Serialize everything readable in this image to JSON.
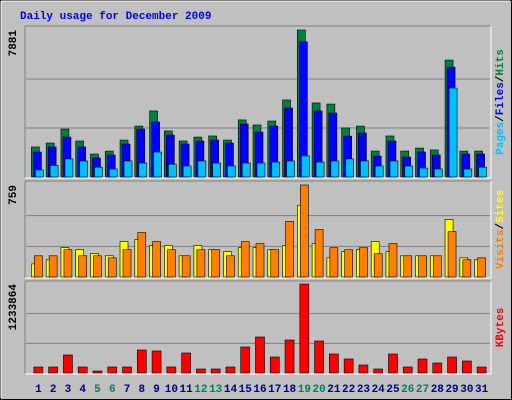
{
  "chart_data": [
    {
      "type": "bar",
      "title": "Daily usage for December 2009",
      "title_color": "#0000ff",
      "ylim": [
        0,
        7881
      ],
      "grid": true,
      "legend_separator": "/",
      "series": [
        {
          "name": "Hits",
          "color": "#008040",
          "values": [
            1610,
            1820,
            2570,
            1930,
            1230,
            1390,
            1980,
            2730,
            3540,
            2470,
            1930,
            2140,
            2200,
            1980,
            3060,
            2790,
            3000,
            4130,
            7881,
            3970,
            3910,
            2630,
            2730,
            1390,
            2200,
            1390,
            1550,
            1450,
            6270,
            1390,
            1390
          ]
        },
        {
          "name": "Files",
          "color": "#0000ff",
          "values": [
            1340,
            1610,
            2140,
            1610,
            1020,
            1180,
            1770,
            2570,
            2950,
            2250,
            1770,
            1930,
            1980,
            1820,
            2840,
            2410,
            2730,
            3700,
            7250,
            3540,
            3430,
            2190,
            2360,
            1120,
            1930,
            1070,
            1340,
            1180,
            5890,
            1230,
            1230
          ]
        },
        {
          "name": "Pages",
          "color": "#00c0ff",
          "values": [
            380,
            620,
            970,
            860,
            530,
            430,
            860,
            750,
            1340,
            690,
            590,
            860,
            750,
            590,
            750,
            750,
            800,
            860,
            1130,
            800,
            860,
            970,
            860,
            590,
            860,
            590,
            480,
            430,
            4770,
            430,
            530
          ]
        }
      ]
    },
    {
      "type": "bar",
      "ylim": [
        0,
        759
      ],
      "grid": true,
      "legend_separator": "/",
      "series": [
        {
          "name": "Sites",
          "color": "#ffff00",
          "values": [
            108,
            142,
            242,
            225,
            192,
            175,
            292,
            309,
            259,
            259,
            175,
            259,
            225,
            209,
            242,
            242,
            225,
            259,
            592,
            275,
            158,
            209,
            225,
            292,
            209,
            175,
            175,
            175,
            475,
            158,
            142
          ]
        },
        {
          "name": "Visits",
          "color": "#ff8000",
          "values": [
            175,
            175,
            225,
            175,
            175,
            158,
            225,
            367,
            292,
            225,
            175,
            225,
            225,
            175,
            292,
            275,
            225,
            459,
            759,
            392,
            242,
            225,
            242,
            192,
            275,
            175,
            175,
            175,
            375,
            142,
            158
          ]
        }
      ]
    },
    {
      "type": "bar",
      "ylim": [
        0,
        1233864
      ],
      "grid": true,
      "categories": [
        "1",
        "2",
        "3",
        "4",
        "5",
        "6",
        "7",
        "8",
        "9",
        "10",
        "11",
        "12",
        "13",
        "14",
        "15",
        "16",
        "17",
        "18",
        "19",
        "20",
        "21",
        "22",
        "23",
        "24",
        "25",
        "26",
        "27",
        "28",
        "29",
        "30",
        "31"
      ],
      "weekend": [
        false,
        false,
        false,
        false,
        true,
        true,
        false,
        false,
        false,
        false,
        false,
        true,
        true,
        false,
        false,
        false,
        false,
        false,
        true,
        true,
        false,
        false,
        false,
        false,
        false,
        true,
        true,
        false,
        false,
        false,
        false
      ],
      "weekend_color": "#00805c",
      "weekday_color": "#000080",
      "series": [
        {
          "name": "KBytes",
          "color": "#ff0000",
          "values": [
            83180,
            83180,
            249550,
            83180,
            27730,
            83180,
            83180,
            318870,
            305010,
            83180,
            277280,
            55460,
            55460,
            83180,
            360460,
            499100,
            221820,
            457510,
            1233864,
            443650,
            263420,
            194100,
            110910,
            55460,
            263420,
            83180,
            194100,
            138640,
            221820,
            166370,
            83180
          ]
        }
      ]
    }
  ]
}
